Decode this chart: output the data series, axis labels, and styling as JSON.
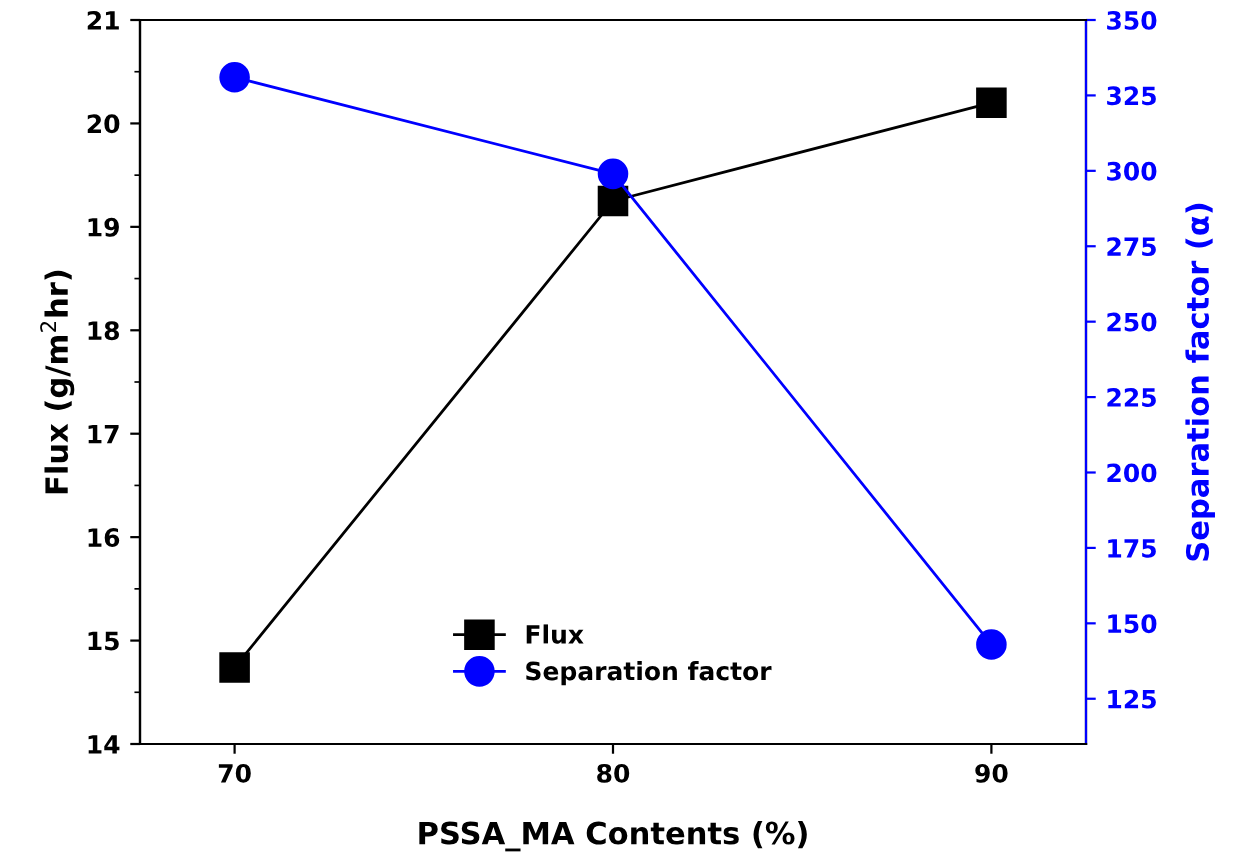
{
  "chart_data": {
    "type": "line",
    "xlabel": "PSSA_MA Contents (%)",
    "ylabel": "Flux (g/m$^{2}$hr)",
    "y2label": "Separation factor (α)",
    "x": [
      70,
      80,
      90
    ],
    "series": [
      {
        "name": "Flux",
        "color": "#000000",
        "marker": "square",
        "values": [
          14.74,
          19.25,
          20.2
        ]
      },
      {
        "name": "Separation factor",
        "color": "#0000ff",
        "marker": "circle",
        "axis": "y2",
        "values": [
          331,
          299,
          143
        ]
      }
    ],
    "xlim": [
      67.5,
      92.5
    ],
    "xticks": [
      70,
      80,
      90
    ],
    "ylim": [
      14,
      21
    ],
    "yticks": [
      14,
      15,
      16,
      17,
      18,
      19,
      20,
      21
    ],
    "y2lim": [
      110,
      350
    ],
    "y2ticks": [
      125,
      150,
      175,
      200,
      225,
      250,
      275,
      300,
      325,
      350
    ],
    "grid": false,
    "legend": "bottom"
  }
}
